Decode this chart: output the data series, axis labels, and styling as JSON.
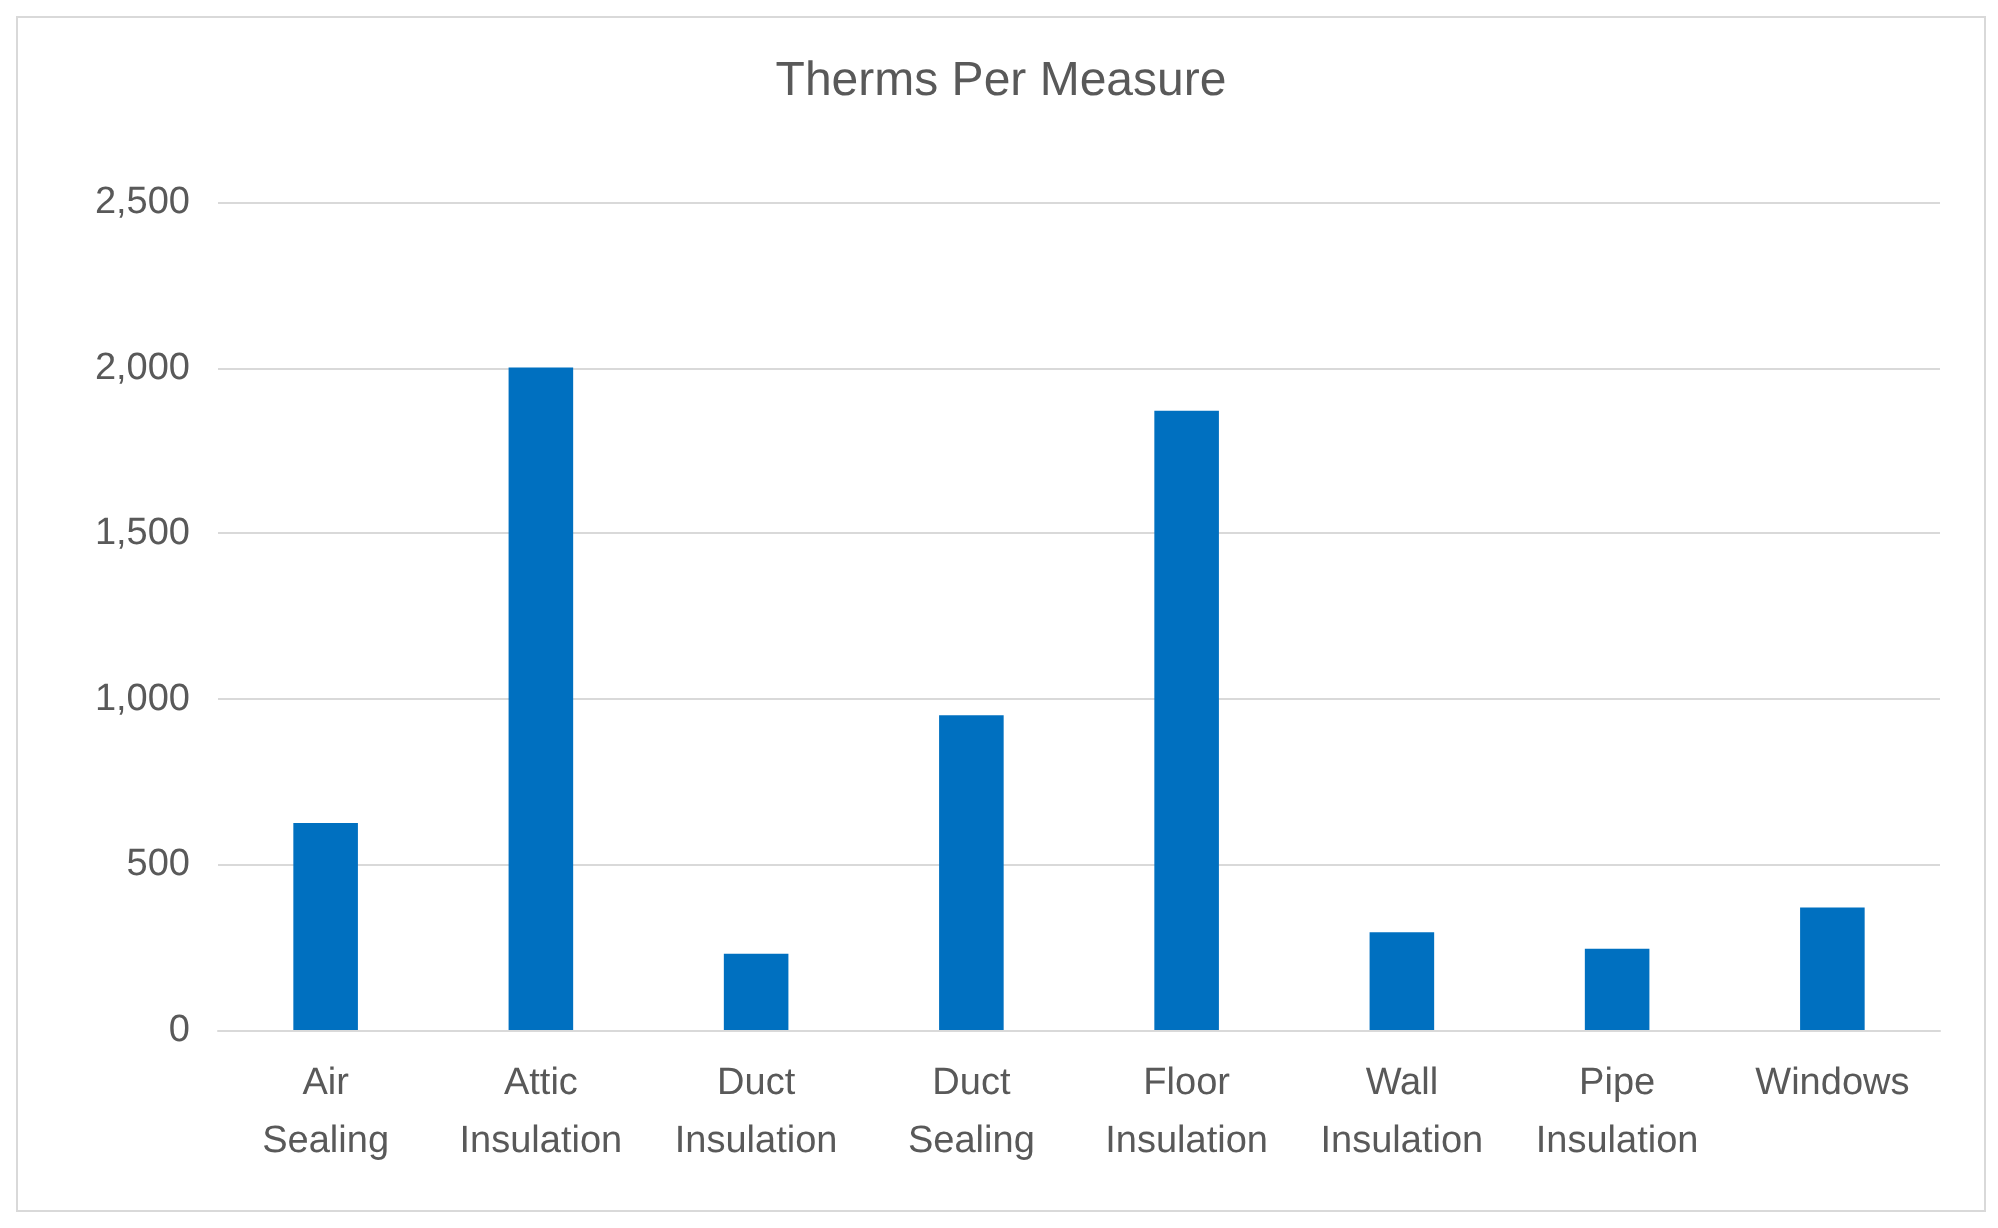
{
  "chart_data": {
    "type": "bar",
    "title": "Therms Per Measure",
    "categories": [
      "Air\nSealing",
      "Attic\nInsulation",
      "Duct\nInsulation",
      "Duct\nSealing",
      "Floor\nInsulation",
      "Wall\nInsulation",
      "Pipe\nInsulation",
      "Windows"
    ],
    "values": [
      625,
      2000,
      230,
      950,
      1870,
      295,
      245,
      370
    ],
    "color": "#0070c0",
    "ylim": [
      0,
      2500
    ],
    "yticks": [
      0,
      500,
      {
        "value": 1000,
        "label": "1,000"
      },
      {
        "value": 1500,
        "label": "1,500"
      },
      {
        "value": 2000,
        "label": "2,000"
      },
      {
        "value": 2500,
        "label": "2,500"
      }
    ],
    "grid": "y"
  }
}
